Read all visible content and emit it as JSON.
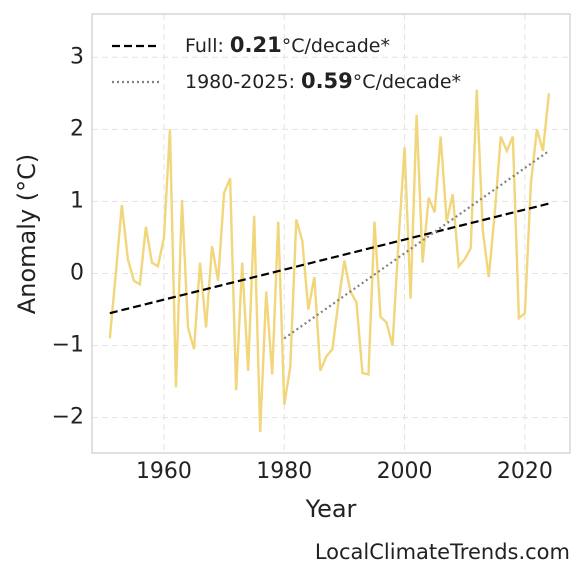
{
  "chart_data": {
    "type": "line",
    "x_label": "Year",
    "y_label": "Anomaly (°C)",
    "source": "LocalClimateTrends.com",
    "xlim": [
      1948.04,
      2027.5
    ],
    "ylim": [
      -2.49,
      3.6
    ],
    "xticks": [
      1960,
      1980,
      2000,
      2020
    ],
    "yticks": [
      {
        "value": -2,
        "label": "−2"
      },
      {
        "value": -1,
        "label": "−1"
      },
      0,
      1,
      2,
      3
    ],
    "grid": true,
    "legend": "upper left",
    "series": [
      {
        "color": "#f1d67b",
        "linestyle": "solid",
        "x": [
          1951,
          1952,
          1953,
          1954,
          1955,
          1956,
          1957,
          1958,
          1959,
          1960,
          1961,
          1962,
          1963,
          1964,
          1965,
          1966,
          1967,
          1968,
          1969,
          1970,
          1971,
          1972,
          1973,
          1974,
          1975,
          1976,
          1977,
          1978,
          1979,
          1980,
          1981,
          1982,
          1983,
          1984,
          1985,
          1986,
          1987,
          1988,
          1989,
          1990,
          1991,
          1992,
          1993,
          1994,
          1995,
          1996,
          1997,
          1998,
          1999,
          2000,
          2001,
          2002,
          2003,
          2004,
          2005,
          2006,
          2007,
          2008,
          2009,
          2010,
          2011,
          2012,
          2013,
          2014,
          2015,
          2016,
          2017,
          2018,
          2019,
          2020,
          2021,
          2022,
          2023,
          2024
        ],
        "values": [
          -0.9,
          0.0,
          0.95,
          0.2,
          -0.1,
          -0.15,
          0.65,
          0.15,
          0.1,
          0.5,
          2.0,
          -1.58,
          1.02,
          -0.75,
          -1.05,
          0.15,
          -0.75,
          0.38,
          -0.1,
          1.12,
          1.32,
          -1.62,
          0.15,
          -1.35,
          0.8,
          -2.2,
          -0.25,
          -1.4,
          0.72,
          -1.82,
          -1.3,
          0.75,
          0.45,
          -0.5,
          -0.05,
          -1.35,
          -1.15,
          -1.05,
          -0.4,
          0.18,
          -0.25,
          -0.4,
          -1.38,
          -1.4,
          0.72,
          -0.6,
          -0.68,
          -1.0,
          0.45,
          1.75,
          -0.35,
          2.2,
          0.15,
          1.05,
          0.85,
          1.9,
          0.72,
          1.1,
          0.1,
          0.2,
          0.35,
          2.55,
          0.6,
          -0.05,
          0.85,
          1.9,
          1.7,
          1.9,
          -0.62,
          -0.55,
          1.25,
          2.0,
          1.7,
          2.5
        ]
      },
      {
        "name": "Full:",
        "rate": "0.21",
        "unit": "°C/decade*",
        "color": "#000000",
        "linestyle": "dashed",
        "x": [
          1951,
          2024
        ],
        "values": [
          -0.55,
          0.97
        ]
      },
      {
        "name": "1980-2025:",
        "rate": "0.59",
        "unit": "°C/decade*",
        "color": "#808080",
        "linestyle": "dotted",
        "x": [
          1980,
          2024
        ],
        "values": [
          -0.9,
          1.7
        ]
      }
    ]
  }
}
